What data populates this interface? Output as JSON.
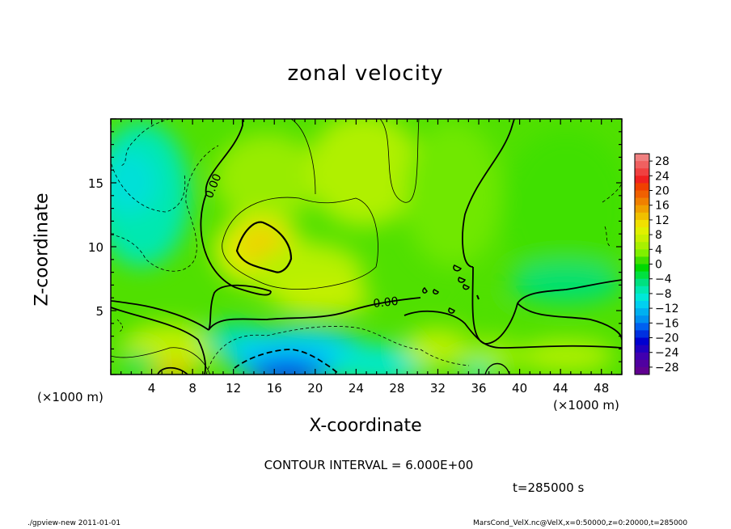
{
  "chart_data": {
    "type": "heatmap",
    "title": "zonal velocity",
    "xlabel": "X-coordinate",
    "ylabel": "Z-coordinate",
    "x_unit_left": "(×1000 m)",
    "x_unit_right": "(×1000 m)",
    "xlim": [
      0,
      50
    ],
    "ylim": [
      0,
      20
    ],
    "x_ticks": [
      4,
      8,
      12,
      16,
      20,
      24,
      28,
      32,
      36,
      40,
      44,
      48
    ],
    "y_ticks": [
      5,
      10,
      15
    ],
    "colorbar": {
      "labels": [
        "28",
        "24",
        "20",
        "16",
        "12",
        "8",
        "4",
        "0",
        "−4",
        "−8",
        "−12",
        "−16",
        "−20",
        "−24",
        "−28"
      ],
      "levels": [
        30,
        28,
        26,
        24,
        22,
        20,
        18,
        16,
        14,
        12,
        10,
        8,
        6,
        4,
        2,
        0,
        -2,
        -4,
        -6,
        -8,
        -10,
        -12,
        -14,
        -16,
        -18,
        -20,
        -22,
        -24,
        -26,
        -28,
        -30
      ],
      "colors": [
        "#f08080",
        "#f06060",
        "#f04040",
        "#f02020",
        "#f04000",
        "#f06000",
        "#f08000",
        "#f0a000",
        "#f0c000",
        "#f0e000",
        "#e0f000",
        "#c8f000",
        "#a8f000",
        "#80f000",
        "#40e000",
        "#00d800",
        "#00e040",
        "#00e080",
        "#00e8b0",
        "#00e8d8",
        "#00d0f0",
        "#00b0f0",
        "#0090f0",
        "#0060f0",
        "#0030e0",
        "#0000d0",
        "#2000c0",
        "#4000b0",
        "#5000a0",
        "#600090"
      ]
    },
    "contour_labels": [
      "0.00",
      "0.00"
    ],
    "contour_interval": 6.0
  },
  "annotations": {
    "contour_text": "CONTOUR INTERVAL = 6.000E+00",
    "time_text": "t=285000  s"
  },
  "footer": {
    "left": "./gpview-new   2011-01-01",
    "right": "MarsCond_VelX.nc@VelX,x=0:50000,z=0:20000,t=285000"
  }
}
